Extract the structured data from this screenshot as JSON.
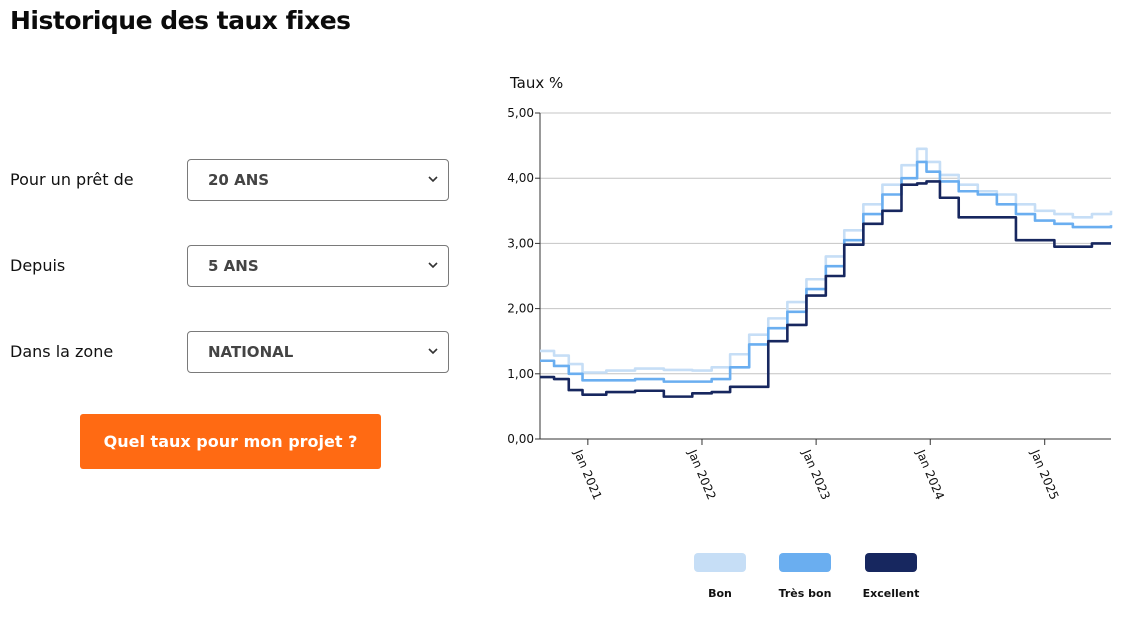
{
  "title": "Historique des taux fixes",
  "form": {
    "duration": {
      "label": "Pour un prêt de",
      "value": "20 ANS"
    },
    "since": {
      "label": "Depuis",
      "value": "5 ANS"
    },
    "zone": {
      "label": "Dans la zone",
      "value": "NATIONAL"
    }
  },
  "cta_label": "Quel taux pour mon projet ?",
  "chart_data": {
    "type": "line",
    "ylabel": "Taux %",
    "ylim": [
      0,
      5
    ],
    "yticks": [
      "0,00",
      "1,00",
      "2,00",
      "3,00",
      "4,00",
      "5,00"
    ],
    "xlim": [
      "2020-08-01",
      "2025-08-01"
    ],
    "xticks": [
      "2021-01-01",
      "2022-01-01",
      "2023-01-01",
      "2024-01-01",
      "2025-01-01"
    ],
    "xtick_labels": [
      "Jan 2021",
      "Jan 2022",
      "Jan 2023",
      "Jan 2024",
      "Jan 2025"
    ],
    "grid": true,
    "legend_position": "bottom",
    "series": [
      {
        "name": "Bon",
        "color": "#c6def6",
        "x": [
          "2020-08-01",
          "2020-09-15",
          "2020-11-01",
          "2020-12-15",
          "2021-03-01",
          "2021-06-01",
          "2021-09-01",
          "2021-12-01",
          "2022-02-01",
          "2022-04-01",
          "2022-06-01",
          "2022-08-01",
          "2022-10-01",
          "2022-12-01",
          "2023-02-01",
          "2023-04-01",
          "2023-06-01",
          "2023-08-01",
          "2023-10-01",
          "2023-11-20",
          "2023-12-20",
          "2024-02-01",
          "2024-04-01",
          "2024-06-01",
          "2024-08-01",
          "2024-10-01",
          "2024-12-01",
          "2025-02-01",
          "2025-04-01",
          "2025-06-01",
          "2025-08-01"
        ],
        "y": [
          1.35,
          1.28,
          1.15,
          1.02,
          1.05,
          1.08,
          1.06,
          1.05,
          1.1,
          1.3,
          1.6,
          1.85,
          2.1,
          2.45,
          2.8,
          3.2,
          3.6,
          3.9,
          4.2,
          4.45,
          4.25,
          4.05,
          3.9,
          3.8,
          3.75,
          3.6,
          3.5,
          3.45,
          3.4,
          3.45,
          3.5
        ]
      },
      {
        "name": "Très bon",
        "color": "#6aaef0",
        "x": [
          "2020-08-01",
          "2020-09-15",
          "2020-11-01",
          "2020-12-15",
          "2021-03-01",
          "2021-06-01",
          "2021-09-01",
          "2021-12-01",
          "2022-02-01",
          "2022-04-01",
          "2022-06-01",
          "2022-08-01",
          "2022-10-01",
          "2022-12-01",
          "2023-02-01",
          "2023-04-01",
          "2023-06-01",
          "2023-08-01",
          "2023-10-01",
          "2023-11-20",
          "2023-12-20",
          "2024-02-01",
          "2024-04-01",
          "2024-06-01",
          "2024-08-01",
          "2024-10-01",
          "2024-12-01",
          "2025-02-01",
          "2025-04-01",
          "2025-06-01",
          "2025-08-01"
        ],
        "y": [
          1.2,
          1.12,
          1.0,
          0.9,
          0.9,
          0.92,
          0.88,
          0.88,
          0.92,
          1.1,
          1.45,
          1.7,
          1.95,
          2.3,
          2.65,
          3.05,
          3.45,
          3.75,
          4.0,
          4.25,
          4.1,
          3.95,
          3.8,
          3.75,
          3.6,
          3.45,
          3.35,
          3.3,
          3.25,
          3.25,
          3.28
        ]
      },
      {
        "name": "Excellent",
        "color": "#17275f",
        "x": [
          "2020-08-01",
          "2020-09-15",
          "2020-11-01",
          "2020-12-15",
          "2021-03-01",
          "2021-06-01",
          "2021-09-01",
          "2021-12-01",
          "2022-02-01",
          "2022-04-01",
          "2022-06-01",
          "2022-08-01",
          "2022-10-01",
          "2022-12-01",
          "2023-02-01",
          "2023-04-01",
          "2023-06-01",
          "2023-08-01",
          "2023-10-01",
          "2023-11-20",
          "2023-12-20",
          "2024-02-01",
          "2024-04-01",
          "2024-06-01",
          "2024-08-01",
          "2024-10-01",
          "2024-12-01",
          "2025-02-01",
          "2025-04-01",
          "2025-06-01",
          "2025-08-01"
        ],
        "y": [
          0.95,
          0.92,
          0.75,
          0.68,
          0.72,
          0.74,
          0.65,
          0.7,
          0.72,
          0.8,
          0.8,
          1.5,
          1.75,
          2.2,
          2.5,
          2.98,
          3.3,
          3.5,
          3.9,
          3.92,
          3.95,
          3.7,
          3.4,
          3.4,
          3.4,
          3.05,
          3.05,
          2.95,
          2.95,
          3.0,
          3.0
        ]
      }
    ]
  }
}
